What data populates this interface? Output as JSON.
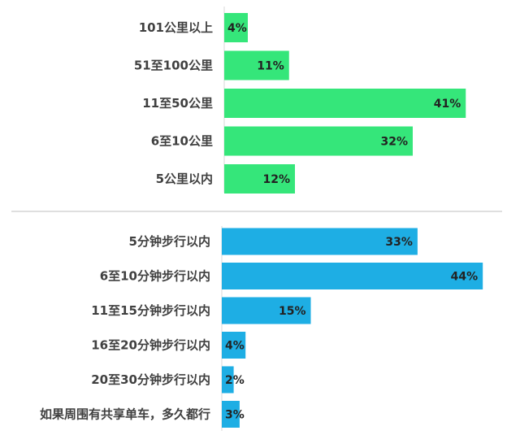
{
  "chart_data": [
    {
      "type": "bar",
      "orientation": "horizontal",
      "categories": [
        "101公里以上",
        "51至100公里",
        "11至50公里",
        "6至10公里",
        "5公里以内"
      ],
      "values": [
        4,
        11,
        41,
        32,
        12
      ],
      "value_labels": [
        "4%",
        "11%",
        "41%",
        "32%",
        "12%"
      ],
      "xlim": [
        0,
        45
      ],
      "color": "#35e67a",
      "grid": false
    },
    {
      "type": "bar",
      "orientation": "horizontal",
      "categories": [
        "5分钟步行以内",
        "6至10分钟步行以内",
        "11至15分钟步行以内",
        "16至20分钟步行以内",
        "20至30分钟步行以内",
        "如果周围有共享单车，多久都行"
      ],
      "values": [
        33,
        44,
        15,
        4,
        2,
        3
      ],
      "value_labels": [
        "33%",
        "44%",
        "15%",
        "4%",
        "2%",
        "3%"
      ],
      "xlim": [
        0,
        45
      ],
      "color": "#1eaee4",
      "grid": false
    }
  ]
}
